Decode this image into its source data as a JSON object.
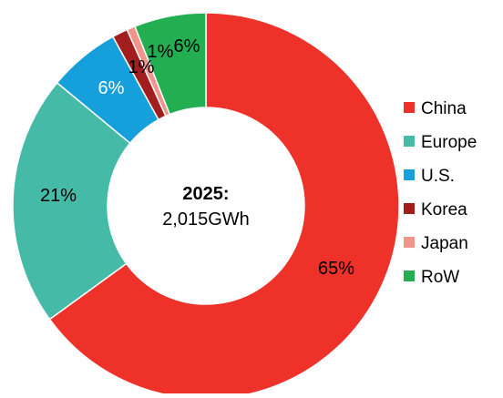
{
  "chart_data": {
    "type": "pie",
    "style": "donut",
    "center_title": "2025:",
    "center_subtitle": "2,015GWh",
    "legend_position": "right",
    "slices": [
      {
        "label": "China",
        "value": 65,
        "value_label": "65%",
        "color": "#EE3129"
      },
      {
        "label": "Europe",
        "value": 21,
        "value_label": "21%",
        "color": "#45BBA7"
      },
      {
        "label": "U.S.",
        "value": 6,
        "value_label": "6%",
        "color": "#159FDB"
      },
      {
        "label": "Korea",
        "value": 1,
        "value_label": "1%",
        "color": "#A21E1E"
      },
      {
        "label": "Japan",
        "value": 1,
        "value_label": "1%",
        "color": "#F2938C"
      },
      {
        "label": "RoW",
        "value": 6,
        "value_label": "6%",
        "color": "#23AE51"
      }
    ]
  }
}
